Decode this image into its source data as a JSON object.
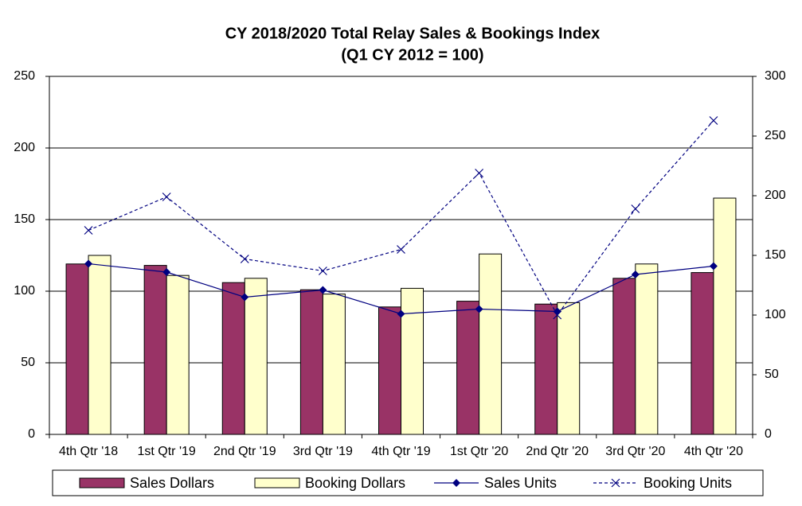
{
  "chart_data": {
    "type": "bar-line",
    "title": "CY 2018/2020 Total Relay Sales & Bookings Index",
    "subtitle": "(Q1 CY 2012 = 100)",
    "categories": [
      "4th Qtr '18",
      "1st Qtr '19",
      "2nd Qtr '19",
      "3rd Qtr '19",
      "4th Qtr '19",
      "1st Qtr '20",
      "2nd Qtr '20",
      "3rd Qtr '20",
      "4th Qtr '20"
    ],
    "series": [
      {
        "name": "Sales Dollars",
        "type": "bar",
        "color": "#993366",
        "values": [
          119,
          118,
          106,
          101,
          89,
          93,
          91,
          109,
          113
        ]
      },
      {
        "name": "Booking Dollars",
        "type": "bar",
        "color": "#ffffcc",
        "values": [
          125,
          111,
          109,
          98,
          102,
          126,
          92,
          119,
          165
        ]
      },
      {
        "name": "Sales Units",
        "type": "line",
        "axis": "y2",
        "color": "#000080",
        "marker": "diamond",
        "dashed": false,
        "values": [
          143,
          136,
          115,
          121,
          101,
          105,
          103,
          134,
          141
        ]
      },
      {
        "name": "Booking Units",
        "type": "line",
        "axis": "y2",
        "color": "#000080",
        "marker": "x",
        "dashed": true,
        "values": [
          171,
          199,
          147,
          137,
          155,
          219,
          100,
          189,
          263
        ]
      }
    ],
    "ylim": [
      0,
      250
    ],
    "yticks": [
      0,
      50,
      100,
      150,
      200,
      250
    ],
    "y2lim": [
      0,
      300
    ],
    "y2ticks": [
      0,
      50,
      100,
      150,
      200,
      250,
      300
    ],
    "grid": true,
    "legend": "bottom"
  }
}
